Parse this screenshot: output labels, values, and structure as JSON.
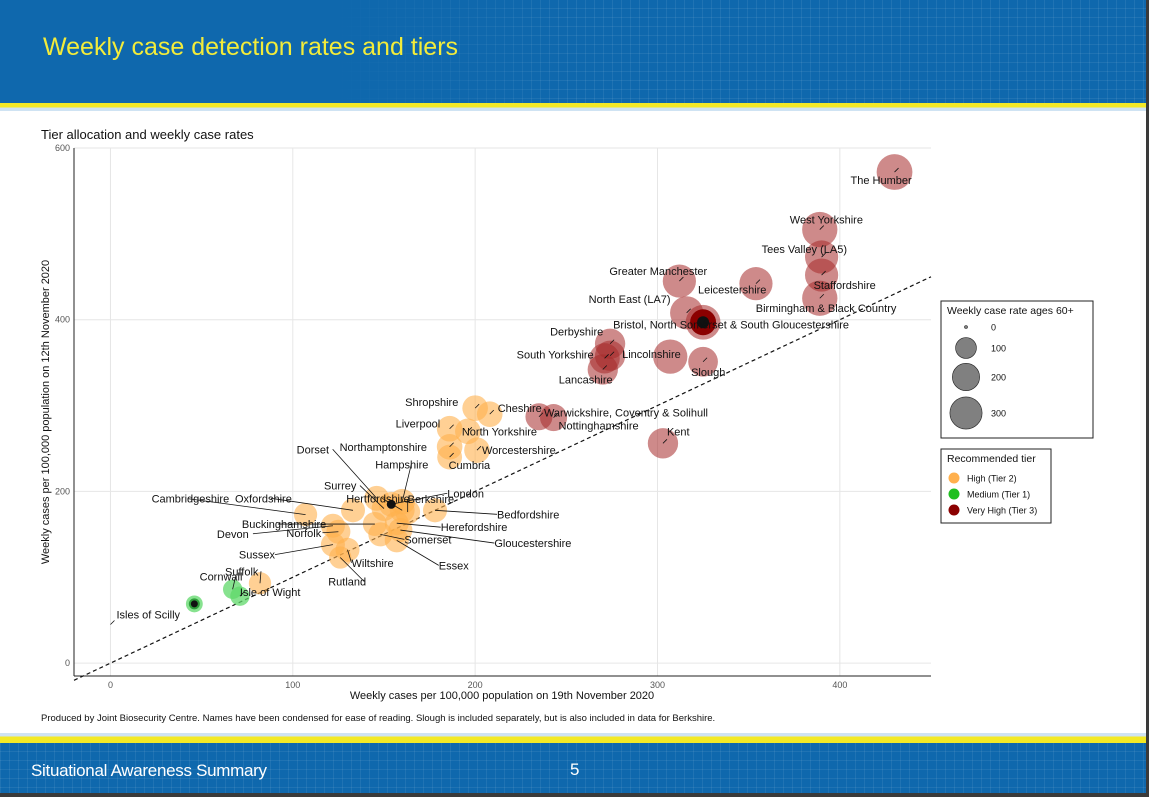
{
  "slide": {
    "title": "Weekly case detection rates and tiers",
    "footer": "Situational Awareness Summary",
    "page_number": "5",
    "note": "Produced by Joint Biosecurity Centre. Names have been condensed for ease of reading. Slough is included separately, but is also included in data for Berkshire."
  },
  "colors": {
    "header_blue": "#0f68ad",
    "title_yellow": "#f3ec3a",
    "tier2": "#ffb04d",
    "tier1": "#5fd86a",
    "tier3": "#a52a2a",
    "tier3_legend": "#8b0000"
  },
  "chart_data": {
    "type": "scatter",
    "title": "Tier allocation and weekly case rates",
    "xlabel": "Weekly cases per 100,000 population on 19th November 2020",
    "ylabel": "Weekly cases per 100,000 population on 12th November 2020",
    "xlim": [
      -20,
      450
    ],
    "ylim": [
      -15,
      600
    ],
    "xticks": [
      0,
      100,
      200,
      300,
      400
    ],
    "yticks": [
      0,
      200,
      400,
      600
    ],
    "grid": true,
    "reference_line": "y = x (dashed)",
    "legend_size": {
      "title": "Weekly case rate ages 60+",
      "values": [
        0,
        100,
        200,
        300
      ]
    },
    "legend_tier": {
      "title": "Recommended tier",
      "entries": [
        {
          "key": "tier2",
          "label": "High (Tier 2)"
        },
        {
          "key": "tier1",
          "label": "Medium (Tier 1)"
        },
        {
          "key": "tier3",
          "label": "Very High (Tier 3)"
        }
      ]
    },
    "points": [
      {
        "name": "The Humber",
        "x": 430,
        "y": 572,
        "size": 300,
        "tier": "tier3"
      },
      {
        "name": "West Yorkshire",
        "x": 389,
        "y": 505,
        "size": 290,
        "tier": "tier3"
      },
      {
        "name": "Tees Valley (LA5)",
        "x": 390,
        "y": 473,
        "size": 250,
        "tier": "tier3"
      },
      {
        "name": "Staffordshire",
        "x": 390,
        "y": 452,
        "size": 250,
        "tier": "tier3"
      },
      {
        "name": "Greater Manchester",
        "x": 312,
        "y": 445,
        "size": 250,
        "tier": "tier3"
      },
      {
        "name": "Leicestershire",
        "x": 354,
        "y": 442,
        "size": 250,
        "tier": "tier3"
      },
      {
        "name": "Birmingham & Black Country",
        "x": 389,
        "y": 425,
        "size": 290,
        "tier": "tier3"
      },
      {
        "name": "North East (LA7)",
        "x": 316,
        "y": 408,
        "size": 250,
        "tier": "tier3"
      },
      {
        "name": "Bristol, North Somerset & South Gloucestershire",
        "x": 325,
        "y": 397,
        "size": 280,
        "tier": "tier3",
        "highlight": true
      },
      {
        "name": "Derbyshire",
        "x": 274,
        "y": 372,
        "size": 200,
        "tier": "tier3"
      },
      {
        "name": "Lincolnshire",
        "x": 274,
        "y": 358,
        "size": 200,
        "tier": "tier3"
      },
      {
        "name": "South Yorkshire",
        "x": 271,
        "y": 355,
        "size": 200,
        "tier": "tier3"
      },
      {
        "name": "Lancashire",
        "x": 270,
        "y": 342,
        "size": 200,
        "tier": "tier3"
      },
      {
        "name": "",
        "x": 307,
        "y": 357,
        "size": 270,
        "tier": "tier3"
      },
      {
        "name": "Slough",
        "x": 325,
        "y": 351,
        "size": 190,
        "tier": "tier3"
      },
      {
        "name": "Warwickshire, Coventry & Solihull",
        "x": 235,
        "y": 287,
        "size": 150,
        "tier": "tier3"
      },
      {
        "name": "Nottinghamshire",
        "x": 243,
        "y": 286,
        "size": 150,
        "tier": "tier3"
      },
      {
        "name": "Kent",
        "x": 303,
        "y": 256,
        "size": 200,
        "tier": "tier3"
      },
      {
        "name": "Shropshire",
        "x": 200,
        "y": 297,
        "size": 130,
        "tier": "tier2"
      },
      {
        "name": "Cheshire",
        "x": 208,
        "y": 290,
        "size": 130,
        "tier": "tier2"
      },
      {
        "name": "Liverpool",
        "x": 186,
        "y": 273,
        "size": 130,
        "tier": "tier2"
      },
      {
        "name": "North Yorkshire",
        "x": 196,
        "y": 270,
        "size": 130,
        "tier": "tier2"
      },
      {
        "name": "Northamptonshire",
        "x": 186,
        "y": 252,
        "size": 130,
        "tier": "tier2"
      },
      {
        "name": "Worcestershire",
        "x": 201,
        "y": 248,
        "size": 130,
        "tier": "tier2"
      },
      {
        "name": "Cumbria",
        "x": 186,
        "y": 240,
        "size": 120,
        "tier": "tier2"
      },
      {
        "name": "Dorset",
        "x": 146,
        "y": 192,
        "size": 120,
        "tier": "tier2"
      },
      {
        "name": "Hampshire",
        "x": 160,
        "y": 188,
        "size": 130,
        "tier": "tier2"
      },
      {
        "name": "Surrey",
        "x": 150,
        "y": 180,
        "size": 120,
        "tier": "tier2"
      },
      {
        "name": "Hertfordshire",
        "x": 160,
        "y": 178,
        "size": 120,
        "tier": "tier2"
      },
      {
        "name": "Berkshire",
        "x": 163,
        "y": 176,
        "size": 120,
        "tier": "tier2"
      },
      {
        "name": "London",
        "x": 154,
        "y": 185,
        "size": 120,
        "tier": "tier2",
        "highlight": true
      },
      {
        "name": "Bedfordshire",
        "x": 178,
        "y": 178,
        "size": 110,
        "tier": "tier2"
      },
      {
        "name": "Oxfordshire",
        "x": 133,
        "y": 178,
        "size": 110,
        "tier": "tier2"
      },
      {
        "name": "Cambridgeshire",
        "x": 107,
        "y": 173,
        "size": 100,
        "tier": "tier2"
      },
      {
        "name": "Buckinghamshire",
        "x": 145,
        "y": 162,
        "size": 110,
        "tier": "tier2"
      },
      {
        "name": "Herefordshire",
        "x": 157,
        "y": 163,
        "size": 110,
        "tier": "tier2"
      },
      {
        "name": "Gloucestershire",
        "x": 159,
        "y": 155,
        "size": 110,
        "tier": "tier2"
      },
      {
        "name": "Devon",
        "x": 122,
        "y": 160,
        "size": 110,
        "tier": "tier2"
      },
      {
        "name": "Norfolk",
        "x": 125,
        "y": 153,
        "size": 110,
        "tier": "tier2"
      },
      {
        "name": "Somerset",
        "x": 148,
        "y": 150,
        "size": 110,
        "tier": "tier2"
      },
      {
        "name": "Sussex",
        "x": 122,
        "y": 138,
        "size": 110,
        "tier": "tier2"
      },
      {
        "name": "Wiltshire",
        "x": 130,
        "y": 132,
        "size": 110,
        "tier": "tier2"
      },
      {
        "name": "Essex",
        "x": 157,
        "y": 143,
        "size": 110,
        "tier": "tier2"
      },
      {
        "name": "Rutland",
        "x": 126,
        "y": 123,
        "size": 90,
        "tier": "tier2"
      },
      {
        "name": "Suffolk",
        "x": 82,
        "y": 93,
        "size": 90,
        "tier": "tier2"
      },
      {
        "name": "Cornwall",
        "x": 67,
        "y": 86,
        "size": 60,
        "tier": "tier1"
      },
      {
        "name": "Isle of Wight",
        "x": 71,
        "y": 78,
        "size": 60,
        "tier": "tier1"
      },
      {
        "name": "",
        "x": 46,
        "y": 69,
        "size": 40,
        "tier": "tier1",
        "highlight": true
      },
      {
        "name": "Isles of Scilly",
        "x": 0,
        "y": 45,
        "size": 0,
        "tier": "tier1"
      }
    ]
  }
}
